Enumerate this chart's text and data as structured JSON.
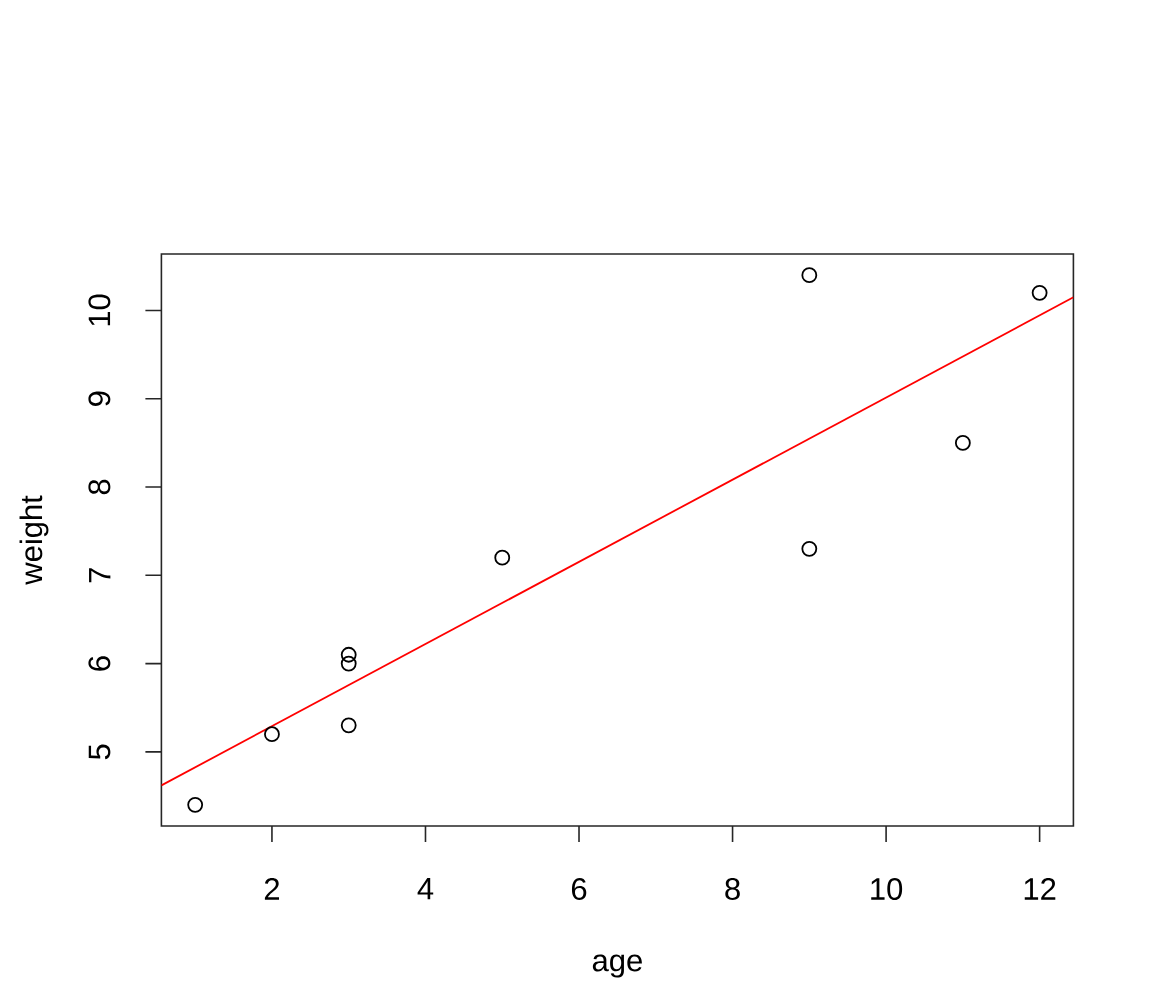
{
  "chart_data": {
    "type": "scatter",
    "xlabel": "age",
    "ylabel": "weight",
    "marker": "circle",
    "series": [
      {
        "color": "#000000",
        "x": [
          1,
          2,
          3,
          3,
          3,
          5,
          9,
          9,
          11,
          12
        ],
        "values": [
          4.4,
          5.2,
          5.3,
          6.0,
          6.1,
          7.2,
          10.4,
          7.3,
          8.5,
          10.2
        ]
      },
      {
        "type": "line",
        "color": "#ff0000",
        "marker": "none",
        "x": [
          0.56,
          12.44
        ],
        "values": [
          4.62,
          10.15
        ]
      }
    ],
    "xlim": [
      0.56,
      12.44
    ],
    "ylim": [
      4.16,
      10.64
    ],
    "xticks": [
      2,
      4,
      6,
      8,
      10,
      12
    ],
    "yticks": [
      5,
      6,
      7,
      8,
      9,
      10
    ]
  }
}
